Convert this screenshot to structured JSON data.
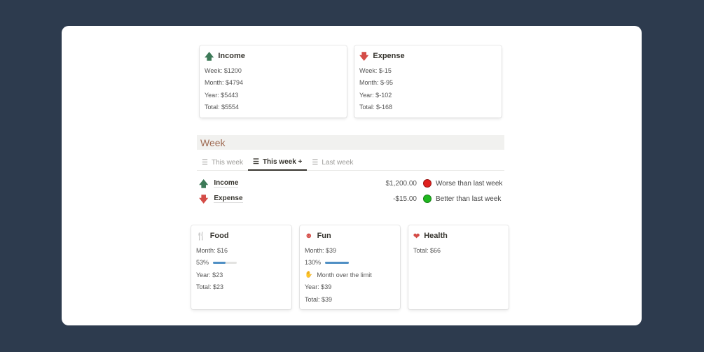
{
  "income": {
    "title": "Income",
    "icon": "arrow-up-icon",
    "lines": [
      "Week: $1200",
      "Month: $4794",
      "Year: $5443",
      "Total: $5554"
    ]
  },
  "expense": {
    "title": "Expense",
    "icon": "arrow-down-icon",
    "lines": [
      "Week: $-15",
      "Month: $-95",
      "Year: $-102",
      "Total: $-168"
    ]
  },
  "week": {
    "heading": "Week",
    "tabs": [
      {
        "label": "This week",
        "active": false
      },
      {
        "label": "This week +",
        "active": true
      },
      {
        "label": "Last week",
        "active": false
      }
    ],
    "rows": [
      {
        "name": "Income",
        "amount": "$1,200.00",
        "status": "Worse than last week",
        "status_color": "#e0201e"
      },
      {
        "name": "Expense",
        "amount": "-$15.00",
        "status": "Better than last week",
        "status_color": "#1fb81f"
      }
    ]
  },
  "categories": [
    {
      "title": "Food",
      "icon": "fork-knife-icon",
      "month": "Month: $16",
      "percent": "53%",
      "progress": 53,
      "year": "Year: $23",
      "total": "Total: $23"
    },
    {
      "title": "Fun",
      "icon": "smiley-icon",
      "month": "Month: $39",
      "percent": "130%",
      "progress": 130,
      "warning": "Month over the limit",
      "year": "Year: $39",
      "total": "Total: $39"
    },
    {
      "title": "Health",
      "icon": "heart-icon",
      "total": "Total: $66"
    }
  ],
  "colors": {
    "background": "#2d3b4e",
    "income": "#3d7a58",
    "expense": "#d44c47",
    "progress": "#4f8fc4"
  }
}
